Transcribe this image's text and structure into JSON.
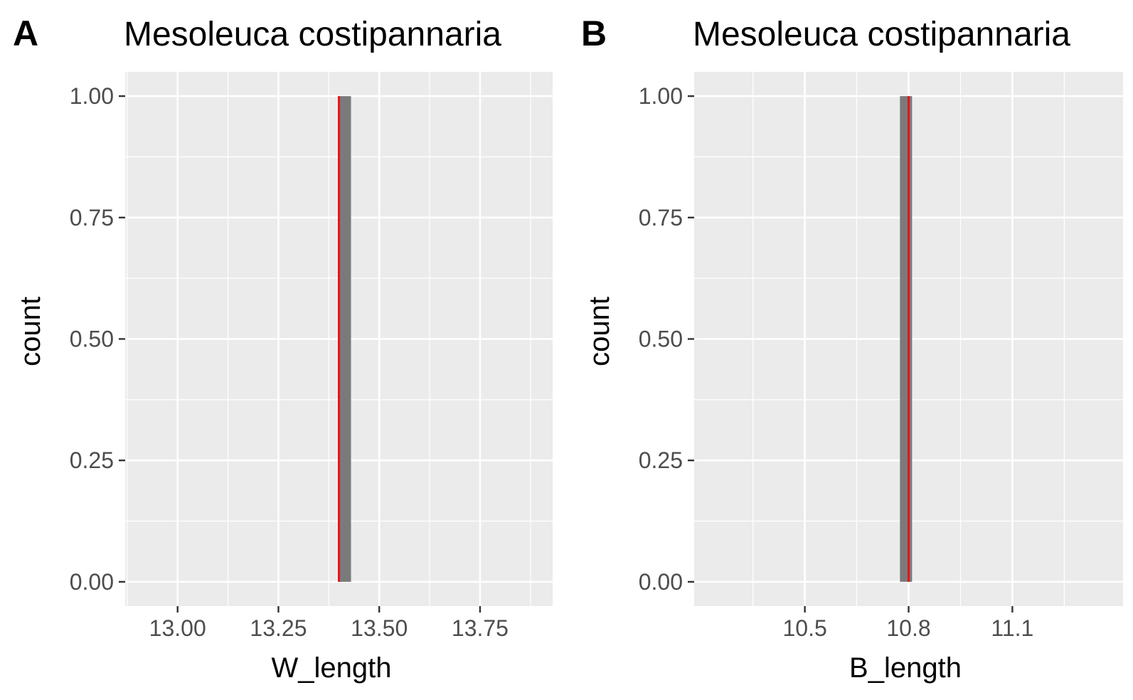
{
  "chart_data": [
    {
      "type": "bar",
      "panel": "A",
      "title": "Mesoleuca costipannaria",
      "xlabel": "W_length",
      "ylabel": "count",
      "xlim": [
        12.87,
        13.93
      ],
      "ylim": [
        -0.05,
        1.05
      ],
      "x_ticks": [
        {
          "value": 13.0,
          "label": "13.00"
        },
        {
          "value": 13.25,
          "label": "13.25"
        },
        {
          "value": 13.5,
          "label": "13.50"
        },
        {
          "value": 13.75,
          "label": "13.75"
        }
      ],
      "x_minor": [
        12.875,
        13.125,
        13.375,
        13.625,
        13.875
      ],
      "y_ticks": [
        {
          "value": 0.0,
          "label": "0.00"
        },
        {
          "value": 0.25,
          "label": "0.25"
        },
        {
          "value": 0.5,
          "label": "0.50"
        },
        {
          "value": 0.75,
          "label": "0.75"
        },
        {
          "value": 1.0,
          "label": "1.00"
        }
      ],
      "bars": [
        {
          "x0": 13.4,
          "x1": 13.43,
          "count": 1
        }
      ],
      "bar_color": "#7a7a7a",
      "vline": {
        "x": 13.4,
        "color": "#e8141b"
      },
      "grid": true,
      "panel_background": "#ebebeb"
    },
    {
      "type": "bar",
      "panel": "B",
      "title": "Mesoleuca costipannaria",
      "xlabel": "B_length",
      "ylabel": "count",
      "xlim": [
        10.18,
        11.42
      ],
      "ylim": [
        -0.05,
        1.05
      ],
      "x_ticks": [
        {
          "value": 10.5,
          "label": "10.5"
        },
        {
          "value": 10.8,
          "label": "10.8"
        },
        {
          "value": 11.1,
          "label": "11.1"
        }
      ],
      "x_minor": [
        10.35,
        10.65,
        10.95,
        11.25
      ],
      "y_ticks": [
        {
          "value": 0.0,
          "label": "0.00"
        },
        {
          "value": 0.25,
          "label": "0.25"
        },
        {
          "value": 0.5,
          "label": "0.50"
        },
        {
          "value": 0.75,
          "label": "0.75"
        },
        {
          "value": 1.0,
          "label": "1.00"
        }
      ],
      "bars": [
        {
          "x0": 10.775,
          "x1": 10.81,
          "count": 1
        }
      ],
      "bar_color": "#7a7a7a",
      "vline": {
        "x": 10.8,
        "color": "#e8141b"
      },
      "grid": true,
      "panel_background": "#ebebeb"
    }
  ]
}
